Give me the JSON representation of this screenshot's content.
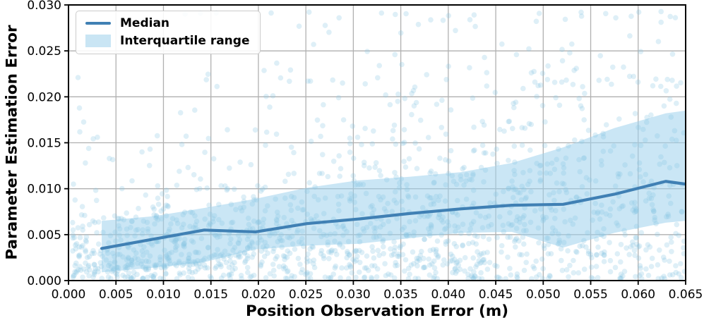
{
  "chart_data": {
    "type": "line",
    "title": "",
    "xlabel": "Position Observation Error (m)",
    "ylabel": "Parameter Estimation Error",
    "xlim": [
      0,
      0.065
    ],
    "ylim": [
      0,
      0.03
    ],
    "grid": true,
    "grid_color": "#b0b0b0",
    "axis_color": "#000000",
    "x_ticks": {
      "values": [
        0.0,
        0.005,
        0.01,
        0.015,
        0.02,
        0.025,
        0.03,
        0.035,
        0.04,
        0.045,
        0.05,
        0.055,
        0.06,
        0.065
      ],
      "labels": [
        "0.000",
        "0.005",
        "0.010",
        "0.015",
        "0.020",
        "0.025",
        "0.030",
        "0.035",
        "0.040",
        "0.045",
        "0.050",
        "0.055",
        "0.060",
        "0.065"
      ]
    },
    "y_ticks": {
      "values": [
        0.0,
        0.005,
        0.01,
        0.015,
        0.02,
        0.025,
        0.03
      ],
      "labels": [
        "0.000",
        "0.005",
        "0.010",
        "0.015",
        "0.020",
        "0.025",
        "0.030"
      ]
    },
    "legend": {
      "position": "upper-left",
      "entries": [
        {
          "label": "Median",
          "swatch": "line",
          "color": "#4080b4"
        },
        {
          "label": "Interquartile range",
          "swatch": "patch",
          "color": "#c9e5f4"
        }
      ]
    },
    "x": [
      0.0035,
      0.0089,
      0.0143,
      0.0197,
      0.0251,
      0.0305,
      0.0359,
      0.0413,
      0.0467,
      0.0521,
      0.0575,
      0.0629,
      0.065
    ],
    "series": [
      {
        "name": "Median",
        "type": "line",
        "color": "#4080b4",
        "line_width": 4.2,
        "y": [
          0.0035,
          0.0045,
          0.0055,
          0.0053,
          0.0062,
          0.0067,
          0.0073,
          0.0078,
          0.0082,
          0.0083,
          0.0094,
          0.0108,
          0.0105
        ]
      },
      {
        "name": "Interquartile range",
        "type": "band",
        "color": "#9fd2ec",
        "opacity": 0.55,
        "lower": [
          0.0009,
          0.0014,
          0.002,
          0.0034,
          0.0038,
          0.004,
          0.0046,
          0.0052,
          0.0053,
          0.0036,
          0.0052,
          0.0063,
          0.0065
        ],
        "upper": [
          0.0065,
          0.007,
          0.0079,
          0.0089,
          0.0101,
          0.0109,
          0.0113,
          0.0118,
          0.0128,
          0.0145,
          0.0166,
          0.0182,
          0.0185
        ]
      },
      {
        "name": "Sample points",
        "type": "scatter",
        "color": "#88c4e2",
        "opacity": 0.28,
        "radius": 3.8,
        "count": 1600,
        "seed": 7,
        "x_min": 0.0004,
        "x_max": 0.0649,
        "log_sigma": 0.72,
        "bottom_strip_fraction": 0.18,
        "bottom_strip_max": 0.0028,
        "y_clip": [
          0.0002,
          0.0293
        ]
      }
    ]
  }
}
